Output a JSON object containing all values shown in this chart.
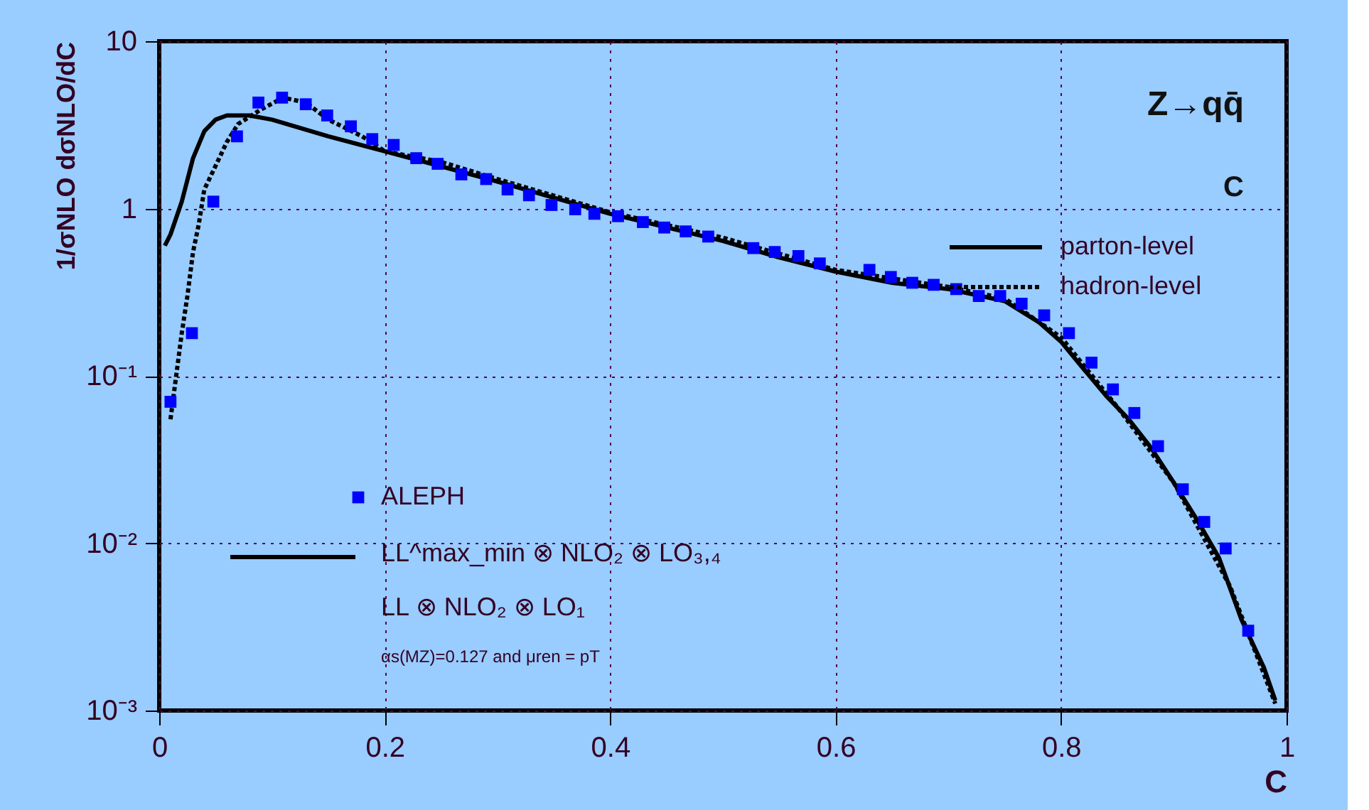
{
  "chart_data": {
    "type": "line",
    "xlabel": "C",
    "ylabel": "1/σNLO dσNLO/dC",
    "annotations": [
      "Z→qq̄",
      "C",
      "LL^max_min ⊗ NLO₂ ⊗ LO₃,₄",
      "LL ⊗ NLO₂ ⊗ LO₁",
      "αs(MZ)=0.127 and μren = pT"
    ],
    "xlim": [
      0,
      1
    ],
    "ylim": [
      0.001,
      10
    ],
    "log": "y",
    "xticks": [
      0,
      0.2,
      0.4,
      0.6,
      0.8,
      1
    ],
    "yticks": [
      {
        "value": 0.001,
        "label": "10⁻³"
      },
      {
        "value": 0.01,
        "label": "10⁻²"
      },
      {
        "value": 0.1,
        "label": "10⁻¹"
      },
      1,
      10
    ],
    "grid": true,
    "legend": "top right",
    "series": [
      {
        "name": "parton-level",
        "color": "#000000",
        "line_style": "solid",
        "x": [
          0.005,
          0.01,
          0.02,
          0.03,
          0.04,
          0.05,
          0.06,
          0.08,
          0.1,
          0.15,
          0.2,
          0.3,
          0.4,
          0.5,
          0.55,
          0.6,
          0.65,
          0.7,
          0.75,
          0.78,
          0.8,
          0.82,
          0.84,
          0.86,
          0.88,
          0.9,
          0.92,
          0.94,
          0.96,
          0.98,
          0.99
        ],
        "values": [
          0.6,
          0.7,
          1.1,
          2.0,
          2.9,
          3.4,
          3.6,
          3.6,
          3.4,
          2.7,
          2.2,
          1.45,
          0.93,
          0.64,
          0.51,
          0.42,
          0.36,
          0.33,
          0.28,
          0.21,
          0.16,
          0.11,
          0.076,
          0.055,
          0.037,
          0.023,
          0.014,
          0.0082,
          0.0035,
          0.0018,
          0.00115
        ]
      },
      {
        "name": "hadron-level",
        "color": "#000000",
        "line_style": "dotted",
        "x": [
          0.01,
          0.02,
          0.025,
          0.03,
          0.035,
          0.04,
          0.05,
          0.06,
          0.07,
          0.09,
          0.11,
          0.13,
          0.15,
          0.18,
          0.2,
          0.25,
          0.3,
          0.4,
          0.5,
          0.6,
          0.7,
          0.75,
          0.8,
          0.85,
          0.9,
          0.95,
          0.99
        ],
        "values": [
          0.055,
          0.18,
          0.3,
          0.55,
          0.8,
          1.3,
          1.8,
          2.5,
          3.2,
          3.9,
          4.6,
          4.3,
          3.4,
          2.7,
          2.2,
          1.9,
          1.5,
          0.95,
          0.67,
          0.43,
          0.34,
          0.29,
          0.17,
          0.065,
          0.023,
          0.0055,
          0.0011
        ]
      },
      {
        "name": "ALEPH",
        "type": "scatter",
        "marker": "square",
        "color": "#0000ff",
        "x": [
          0.01,
          0.029,
          0.048,
          0.069,
          0.088,
          0.109,
          0.13,
          0.149,
          0.17,
          0.189,
          0.208,
          0.228,
          0.247,
          0.268,
          0.29,
          0.309,
          0.328,
          0.348,
          0.369,
          0.386,
          0.407,
          0.429,
          0.448,
          0.467,
          0.487,
          0.527,
          0.546,
          0.567,
          0.586,
          0.63,
          0.649,
          0.668,
          0.687,
          0.707,
          0.727,
          0.746,
          0.765,
          0.785,
          0.807,
          0.827,
          0.846,
          0.865,
          0.886,
          0.908,
          0.927,
          0.946,
          0.966
        ],
        "values": [
          0.07,
          0.18,
          1.1,
          2.7,
          4.3,
          4.6,
          4.2,
          3.6,
          3.1,
          2.6,
          2.4,
          2.0,
          1.85,
          1.6,
          1.5,
          1.3,
          1.2,
          1.05,
          0.99,
          0.93,
          0.9,
          0.83,
          0.77,
          0.73,
          0.68,
          0.58,
          0.55,
          0.52,
          0.47,
          0.43,
          0.39,
          0.36,
          0.35,
          0.33,
          0.3,
          0.3,
          0.27,
          0.23,
          0.18,
          0.12,
          0.083,
          0.06,
          0.038,
          0.021,
          0.0134,
          0.0093,
          0.003
        ]
      }
    ]
  }
}
